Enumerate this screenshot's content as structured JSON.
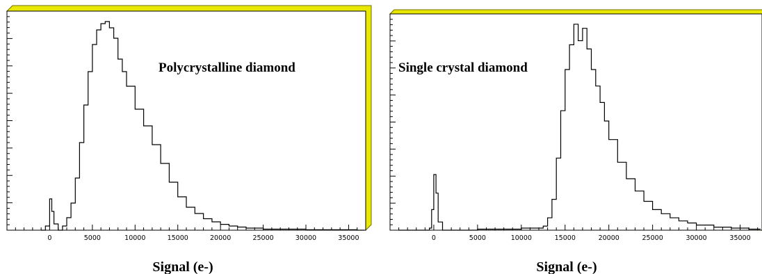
{
  "colors": {
    "frame_shadow": "#e8e800",
    "frame_shadow_edge": "#707000",
    "line": "#000000",
    "background": "#ffffff"
  },
  "chart_data": [
    {
      "type": "line",
      "title": "Polycrystalline diamond",
      "xlabel": "Signal (e-)",
      "ylabel": "",
      "xlim": [
        -5000,
        37000
      ],
      "ylim": [
        0,
        1.05
      ],
      "x_ticks": [
        0,
        5000,
        10000,
        15000,
        20000,
        25000,
        30000,
        35000
      ],
      "x_tick_labels": [
        "0",
        "5000",
        "10000",
        "15000",
        "20000",
        "25000",
        "30000",
        "35000"
      ],
      "grid": false,
      "series": [
        {
          "x": [
            -1000,
            -500,
            0,
            250,
            500,
            1000,
            1500,
            2000,
            2500,
            3000,
            3500,
            4000,
            4500,
            5000,
            5500,
            6000,
            6500,
            7000,
            7500,
            8000,
            8500,
            9000,
            10000,
            11000,
            12000,
            13000,
            14000,
            15000,
            16000,
            17000,
            18000,
            19000,
            20000,
            21000,
            22000,
            23000,
            25000,
            30000,
            36000
          ],
          "values": [
            0,
            0.02,
            0.15,
            0.09,
            0.03,
            0,
            0.02,
            0.06,
            0.13,
            0.25,
            0.42,
            0.6,
            0.76,
            0.89,
            0.96,
            0.99,
            1.0,
            0.97,
            0.92,
            0.82,
            0.76,
            0.69,
            0.58,
            0.5,
            0.41,
            0.32,
            0.23,
            0.16,
            0.11,
            0.08,
            0.055,
            0.04,
            0.028,
            0.02,
            0.015,
            0.01,
            0.005,
            0.002,
            0
          ]
        }
      ]
    },
    {
      "type": "line",
      "title": "Single crystal diamond",
      "xlabel": "Signal (e-)",
      "ylabel": "",
      "xlim": [
        -5000,
        37500
      ],
      "ylim": [
        0,
        1.05
      ],
      "x_ticks": [
        0,
        5000,
        10000,
        15000,
        20000,
        25000,
        30000,
        35000
      ],
      "x_tick_labels": [
        "0",
        "5000",
        "10000",
        "15000",
        "20000",
        "25000",
        "30000",
        "35000"
      ],
      "grid": false,
      "series": [
        {
          "x": [
            -4000,
            -1000,
            -500,
            -250,
            0,
            250,
            500,
            1000,
            5000,
            10000,
            12500,
            13000,
            13500,
            14000,
            14500,
            15000,
            15500,
            16000,
            16500,
            17000,
            17500,
            18000,
            18500,
            19000,
            19500,
            20000,
            21000,
            22000,
            23000,
            24000,
            25000,
            26000,
            27000,
            28000,
            29000,
            30000,
            32000,
            34000,
            36000
          ],
          "values": [
            0,
            0,
            0.01,
            0.1,
            0.27,
            0.18,
            0.04,
            0,
            0.005,
            0.01,
            0.02,
            0.06,
            0.15,
            0.35,
            0.58,
            0.78,
            0.9,
            1.0,
            0.92,
            0.98,
            0.88,
            0.78,
            0.7,
            0.62,
            0.53,
            0.44,
            0.33,
            0.25,
            0.19,
            0.14,
            0.1,
            0.08,
            0.06,
            0.045,
            0.035,
            0.025,
            0.015,
            0.01,
            0.005
          ]
        }
      ]
    }
  ]
}
